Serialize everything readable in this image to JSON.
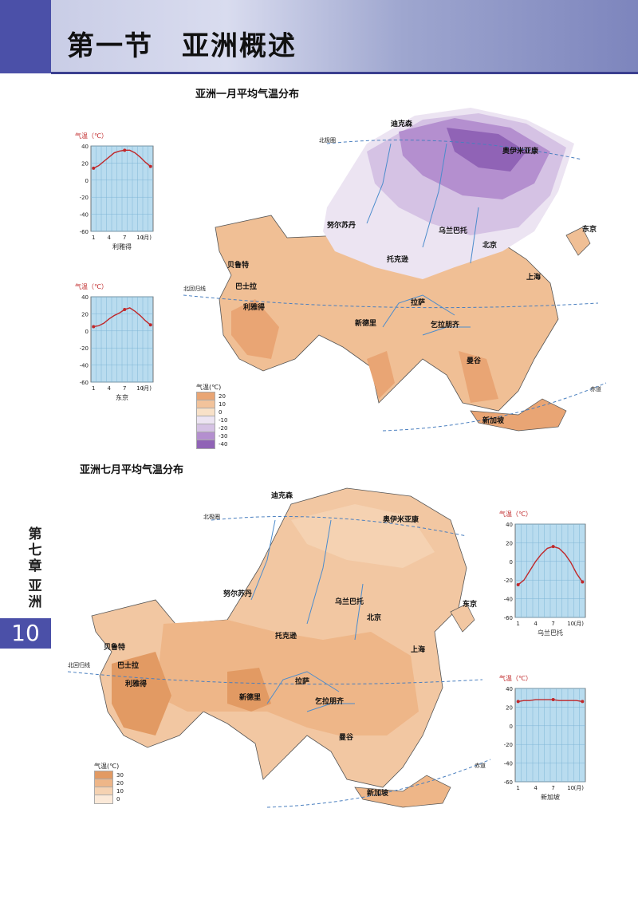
{
  "header": {
    "title": "第一节　亚洲概述"
  },
  "side": {
    "chapter": "第七章",
    "sub": "亚洲",
    "page": "10"
  },
  "maps": {
    "january": {
      "title": "亚洲一月平均气温分布",
      "legend_title": "气温(℃)",
      "legend": [
        {
          "label": "20",
          "color": "#e9a574"
        },
        {
          "label": "10",
          "color": "#f2c39b"
        },
        {
          "label": "0",
          "color": "#f8e1c8"
        },
        {
          "label": "-10",
          "color": "#ece4f2"
        },
        {
          "label": "-20",
          "color": "#d5c2e4"
        },
        {
          "label": "-30",
          "color": "#b48fcf"
        },
        {
          "label": "-40",
          "color": "#9063b6"
        }
      ],
      "cities": [
        "迪克森",
        "奥伊米亚康",
        "努尔苏丹",
        "乌兰巴托",
        "北京",
        "东京",
        "贝鲁特",
        "巴士拉",
        "利雅得",
        "托克逊",
        "上海",
        "拉萨",
        "新德里",
        "乞拉朋齐",
        "曼谷",
        "新加坡"
      ],
      "line_labels": [
        "北极圈",
        "北回归线",
        "赤道"
      ]
    },
    "july": {
      "title": "亚洲七月平均气温分布",
      "legend_title": "气温(℃)",
      "legend": [
        {
          "label": "30",
          "color": "#e29a63"
        },
        {
          "label": "20",
          "color": "#eeb688"
        },
        {
          "label": "10",
          "color": "#f5d2b2"
        },
        {
          "label": "0",
          "color": "#fbe9d8"
        }
      ],
      "cities": [
        "迪克森",
        "奥伊米亚康",
        "努尔苏丹",
        "乌兰巴托",
        "北京",
        "东京",
        "贝鲁特",
        "巴士拉",
        "利雅得",
        "托克逊",
        "上海",
        "拉萨",
        "新德里",
        "乞拉朋齐",
        "曼谷",
        "新加坡"
      ],
      "line_labels": [
        "北极圈",
        "北回归线",
        "赤道"
      ]
    }
  },
  "chart_data": [
    {
      "type": "line",
      "title": "利雅得",
      "ylabel": "气温（℃）",
      "xlabel": "(月)",
      "x": [
        1,
        2,
        3,
        4,
        5,
        6,
        7,
        8,
        9,
        10,
        11,
        12
      ],
      "xticks": [
        "1",
        "4",
        "7",
        "10"
      ],
      "y": [
        14,
        17,
        22,
        27,
        32,
        34,
        35,
        35,
        32,
        27,
        21,
        16
      ],
      "ylim": [
        -60,
        40
      ],
      "yticks": [
        "40",
        "20",
        "0",
        "-20",
        "-40",
        "-60"
      ]
    },
    {
      "type": "line",
      "title": "东京",
      "ylabel": "气温（℃）",
      "xlabel": "(月)",
      "x": [
        1,
        2,
        3,
        4,
        5,
        6,
        7,
        8,
        9,
        10,
        11,
        12
      ],
      "xticks": [
        "1",
        "4",
        "7",
        "10"
      ],
      "y": [
        5,
        6,
        9,
        14,
        18,
        21,
        25,
        27,
        23,
        18,
        12,
        7
      ],
      "ylim": [
        -60,
        40
      ],
      "yticks": [
        "40",
        "20",
        "0",
        "-20",
        "-40",
        "-60"
      ]
    },
    {
      "type": "line",
      "title": "乌兰巴托",
      "ylabel": "气温（℃）",
      "xlabel": "(月)",
      "x": [
        1,
        2,
        3,
        4,
        5,
        6,
        7,
        8,
        9,
        10,
        11,
        12
      ],
      "xticks": [
        "1",
        "4",
        "7",
        "10"
      ],
      "y": [
        -25,
        -20,
        -10,
        0,
        8,
        14,
        16,
        14,
        8,
        -1,
        -13,
        -22
      ],
      "ylim": [
        -60,
        40
      ],
      "yticks": [
        "40",
        "20",
        "0",
        "-20",
        "-40",
        "-60"
      ]
    },
    {
      "type": "line",
      "title": "新加坡",
      "ylabel": "气温（℃）",
      "xlabel": "(月)",
      "x": [
        1,
        2,
        3,
        4,
        5,
        6,
        7,
        8,
        9,
        10,
        11,
        12
      ],
      "xticks": [
        "1",
        "4",
        "7",
        "10"
      ],
      "y": [
        26,
        27,
        27,
        28,
        28,
        28,
        28,
        27,
        27,
        27,
        27,
        26
      ],
      "ylim": [
        -60,
        40
      ],
      "yticks": [
        "40",
        "20",
        "0",
        "-20",
        "-40",
        "-60"
      ]
    }
  ]
}
